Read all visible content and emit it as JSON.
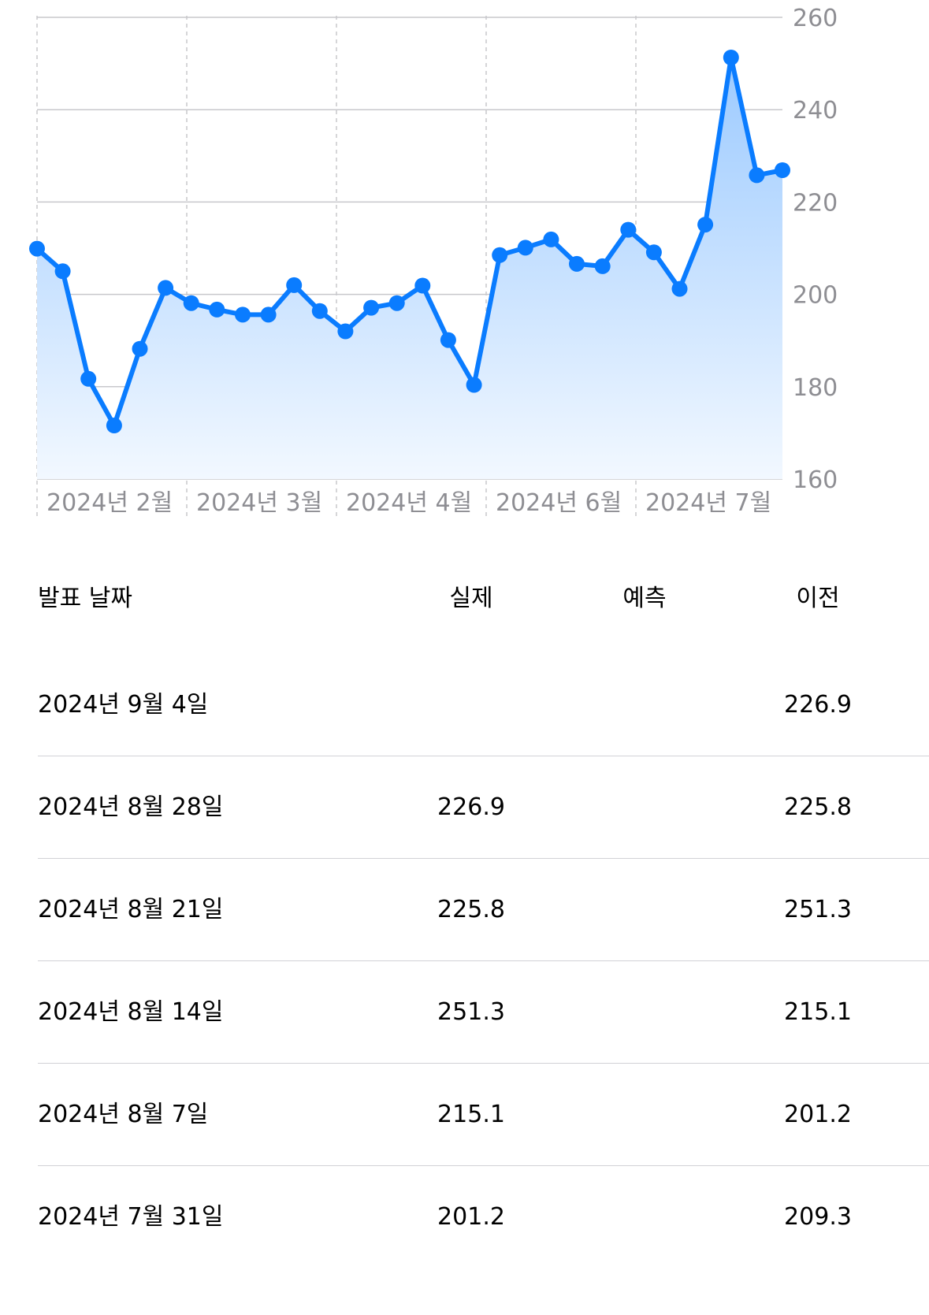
{
  "chart_data": {
    "type": "area",
    "ylim": [
      160,
      260
    ],
    "y_ticks": [
      "260",
      "240",
      "220",
      "200",
      "180",
      "160"
    ],
    "x_ticks": [
      "2024년 2월",
      "2024년 3월",
      "2024년 4월",
      "2024년 6월",
      "2024년 7월"
    ],
    "grid": true,
    "colors": {
      "line": "#0a7cff",
      "fill_top": "#9ccaff",
      "fill_bottom": "#f2f8ff",
      "grid": "#c8c8cc",
      "tick": "#8e8e93"
    },
    "values": [
      209.9,
      205.0,
      181.7,
      171.6,
      188.2,
      201.4,
      198.1,
      196.7,
      195.6,
      195.6,
      202.0,
      196.4,
      192.0,
      197.1,
      198.1,
      201.9,
      190.1,
      180.4,
      208.5,
      210.1,
      211.9,
      206.6,
      206.1,
      214.0,
      209.1,
      201.2,
      215.1,
      251.3,
      225.8,
      226.9
    ]
  },
  "table": {
    "headers": {
      "date": "발표 날짜",
      "actual": "실제",
      "forecast": "예측",
      "previous": "이전"
    },
    "rows": [
      {
        "date": "2024년 9월 4일",
        "actual": "",
        "forecast": "",
        "previous": "226.9"
      },
      {
        "date": "2024년 8월 28일",
        "actual": "226.9",
        "forecast": "",
        "previous": "225.8"
      },
      {
        "date": "2024년 8월 21일",
        "actual": "225.8",
        "forecast": "",
        "previous": "251.3"
      },
      {
        "date": "2024년 8월 14일",
        "actual": "251.3",
        "forecast": "",
        "previous": "215.1"
      },
      {
        "date": "2024년 8월 7일",
        "actual": "215.1",
        "forecast": "",
        "previous": "201.2"
      },
      {
        "date": "2024년 7월 31일",
        "actual": "201.2",
        "forecast": "",
        "previous": "209.3"
      }
    ]
  }
}
